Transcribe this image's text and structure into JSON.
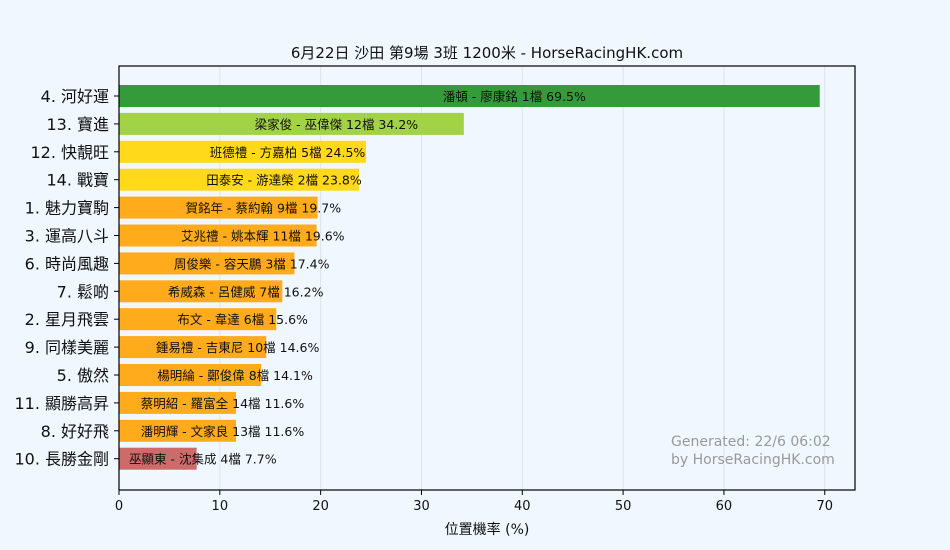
{
  "chart_data": {
    "type": "bar",
    "orientation": "horizontal",
    "title": "6月22日  沙田  第9場  3班  1200米 - HorseRacingHK.com",
    "xlabel": "位置機率 (%)",
    "ylabel": "",
    "xlim": [
      0,
      73
    ],
    "xticks": [
      0,
      10,
      20,
      30,
      40,
      50,
      60,
      70
    ],
    "grid": "vertical",
    "categories": [
      "4. 河好運",
      "13. 寶進",
      "12. 快靚旺",
      "14. 戰寶",
      "1. 魅力寶駒",
      "3. 運高八斗",
      "6. 時尚風趣",
      "7. 鬆啲",
      "2. 星月飛雲",
      "9. 同樣美麗",
      "5. 傲然",
      "11. 顯勝高昇",
      "8. 好好飛",
      "10. 長勝金剛"
    ],
    "values": [
      69.5,
      34.2,
      24.5,
      23.8,
      19.7,
      19.6,
      17.4,
      16.2,
      15.6,
      14.6,
      14.1,
      11.6,
      11.6,
      7.7
    ],
    "bar_labels": [
      "潘頓 - 廖康銘 1檔  69.5%",
      "梁家俊 - 巫偉傑 12檔  34.2%",
      "班德禮 - 方嘉柏 5檔  24.5%",
      "田泰安 - 游達榮 2檔  23.8%",
      "賀銘年 - 蔡約翰 9檔  19.7%",
      "艾兆禮 - 姚本輝 11檔  19.6%",
      "周俊樂 - 容天鵬 3檔  17.4%",
      "希威森 - 呂健威 7檔  16.2%",
      "布文 - 韋達 6檔  15.6%",
      "鍾易禮 - 吉東尼 10檔  14.6%",
      "楊明綸 - 鄭俊偉 8檔  14.1%",
      "蔡明紹 - 羅富全 14檔  11.6%",
      "潘明輝 - 文家良 13檔  11.6%",
      "巫顯東 - 沈集成 4檔  7.7%"
    ],
    "colors": [
      "#359a39",
      "#a2d245",
      "#ffd91a",
      "#ffd91a",
      "#ffab1c",
      "#ffab1c",
      "#ffab1c",
      "#ffab1c",
      "#ffab1c",
      "#ffab1c",
      "#ffab1c",
      "#ffab1c",
      "#ffab1c",
      "#cd6a6a"
    ],
    "annotation": [
      "Generated: 22/6 06:02",
      "by HorseRacingHK.com"
    ]
  }
}
